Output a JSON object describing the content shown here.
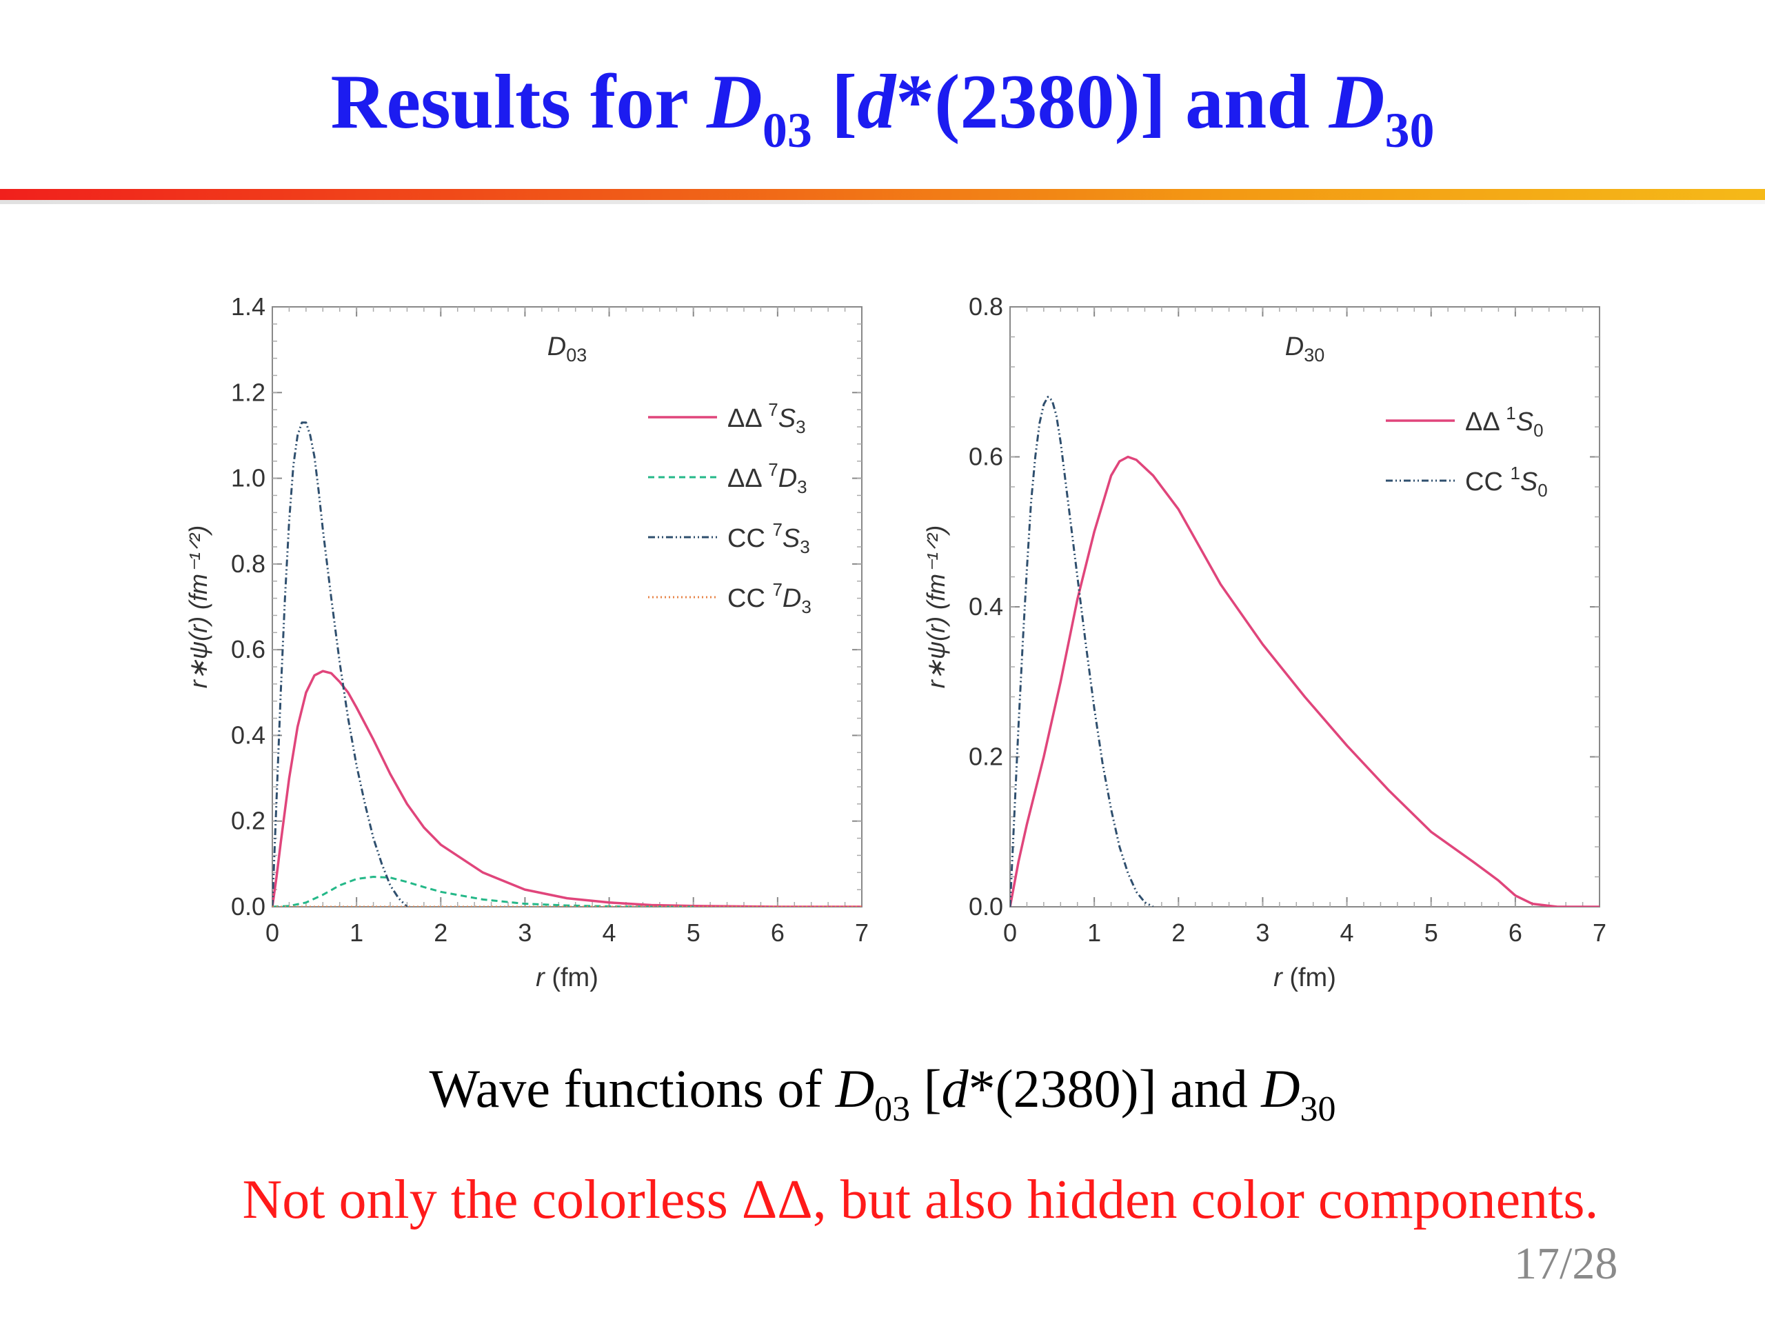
{
  "slide": {
    "title_prefix": "Results for ",
    "title_D03_letter": "D",
    "title_D03_sub": "03",
    "title_bracket_open": " [",
    "title_dstar": "d",
    "title_dstar_rest": "*(2380)] and ",
    "title_D30_letter": "D",
    "title_D30_sub": "30",
    "caption_prefix": "Wave functions of ",
    "caption_D03_letter": "D",
    "caption_D03_sub": "03",
    "caption_middle_open": " [",
    "caption_dstar": "d",
    "caption_middle_rest": "*(2380)] and ",
    "caption_D30_letter": "D",
    "caption_D30_sub": "30",
    "note": "Not only the colorless ΔΔ, but also hidden color components.",
    "page_number": "17/28",
    "colors": {
      "title": "#1c1cf0",
      "note": "#ff1a1a",
      "page_number": "#8a8a8a"
    }
  },
  "chart_data": [
    {
      "type": "line",
      "panel_label": "D",
      "panel_label_sub": "03",
      "xlabel_var": "r",
      "xlabel_unit": " (fm)",
      "ylabel": "r∗ψ(r) (fm⁻¹ᐟ²)",
      "xlim": [
        0,
        7
      ],
      "ylim": [
        0,
        1.4
      ],
      "x_ticks": [
        "0",
        "1",
        "2",
        "3",
        "4",
        "5",
        "6",
        "7"
      ],
      "y_ticks": [
        "0.0",
        "0.2",
        "0.4",
        "0.6",
        "0.8",
        "1.0",
        "1.2",
        "1.4"
      ],
      "legend_position": "top-right",
      "series": [
        {
          "name": "ΔΔ ⁷S₃",
          "legend_main": "ΔΔ ",
          "legend_sup": "7",
          "legend_state": "S",
          "legend_sub": "3",
          "color": "#e0457b",
          "dash": "solid",
          "x": [
            0,
            0.05,
            0.1,
            0.2,
            0.3,
            0.4,
            0.5,
            0.6,
            0.7,
            0.8,
            0.9,
            1.0,
            1.2,
            1.4,
            1.6,
            1.8,
            2.0,
            2.5,
            3.0,
            3.5,
            4.0,
            4.5,
            5.0,
            5.5,
            6.0,
            6.5,
            7.0
          ],
          "y": [
            0,
            0.07,
            0.15,
            0.3,
            0.42,
            0.5,
            0.54,
            0.55,
            0.545,
            0.525,
            0.5,
            0.465,
            0.39,
            0.31,
            0.24,
            0.185,
            0.145,
            0.08,
            0.04,
            0.02,
            0.01,
            0.004,
            0.002,
            0.001,
            0,
            0,
            0
          ]
        },
        {
          "name": "ΔΔ ⁷D₃",
          "legend_main": "ΔΔ ",
          "legend_sup": "7",
          "legend_state": "D",
          "legend_sub": "3",
          "color": "#24b888",
          "dash": "dashed",
          "x": [
            0,
            0.2,
            0.4,
            0.6,
            0.8,
            1.0,
            1.2,
            1.4,
            1.6,
            1.8,
            2.0,
            2.5,
            3.0,
            3.5,
            4.0,
            4.5,
            5.0
          ],
          "y": [
            0,
            0.002,
            0.01,
            0.028,
            0.05,
            0.065,
            0.07,
            0.068,
            0.058,
            0.046,
            0.035,
            0.017,
            0.007,
            0.003,
            0.001,
            0,
            0
          ]
        },
        {
          "name": "CC ⁷S₃",
          "legend_main": "CC ",
          "legend_sup": "7",
          "legend_state": "S",
          "legend_sub": "3",
          "color": "#2f4f6e",
          "dash": "dashdotdot",
          "x": [
            0,
            0.05,
            0.1,
            0.15,
            0.2,
            0.25,
            0.3,
            0.35,
            0.4,
            0.45,
            0.5,
            0.55,
            0.6,
            0.7,
            0.8,
            0.9,
            1.0,
            1.1,
            1.2,
            1.3,
            1.4,
            1.5,
            1.6
          ],
          "y": [
            0,
            0.25,
            0.5,
            0.72,
            0.9,
            1.03,
            1.1,
            1.13,
            1.13,
            1.1,
            1.05,
            0.97,
            0.88,
            0.72,
            0.57,
            0.44,
            0.33,
            0.24,
            0.16,
            0.1,
            0.05,
            0.02,
            0
          ]
        },
        {
          "name": "CC ⁷D₃",
          "legend_main": "CC ",
          "legend_sup": "7",
          "legend_state": "D",
          "legend_sub": "3",
          "color": "#e8864a",
          "dash": "dotted",
          "x": [
            0,
            1,
            2,
            3,
            4,
            5,
            6,
            7
          ],
          "y": [
            0,
            0,
            0,
            0,
            0,
            0,
            0,
            0
          ]
        }
      ]
    },
    {
      "type": "line",
      "panel_label": "D",
      "panel_label_sub": "30",
      "xlabel_var": "r",
      "xlabel_unit": " (fm)",
      "ylabel": "r∗ψ(r) (fm⁻¹ᐟ²)",
      "xlim": [
        0,
        7
      ],
      "ylim": [
        0,
        0.8
      ],
      "x_ticks": [
        "0",
        "1",
        "2",
        "3",
        "4",
        "5",
        "6",
        "7"
      ],
      "y_ticks": [
        "0.0",
        "0.2",
        "0.4",
        "0.6",
        "0.8"
      ],
      "legend_position": "top-right",
      "series": [
        {
          "name": "ΔΔ ¹S₀",
          "legend_main": "ΔΔ ",
          "legend_sup": "1",
          "legend_state": "S",
          "legend_sub": "0",
          "color": "#e0457b",
          "dash": "solid",
          "x": [
            0,
            0.1,
            0.2,
            0.4,
            0.6,
            0.8,
            1.0,
            1.2,
            1.3,
            1.4,
            1.5,
            1.7,
            2.0,
            2.5,
            3.0,
            3.5,
            4.0,
            4.5,
            5.0,
            5.5,
            5.8,
            6.0,
            6.2,
            6.5,
            7.0
          ],
          "y": [
            0,
            0.06,
            0.11,
            0.2,
            0.3,
            0.41,
            0.5,
            0.575,
            0.594,
            0.6,
            0.596,
            0.575,
            0.53,
            0.43,
            0.35,
            0.28,
            0.215,
            0.155,
            0.1,
            0.06,
            0.035,
            0.015,
            0.004,
            0,
            0
          ]
        },
        {
          "name": "CC ¹S₀",
          "legend_main": "CC ",
          "legend_sup": "1",
          "legend_state": "S",
          "legend_sub": "0",
          "color": "#2f4f6e",
          "dash": "dashdotdot",
          "x": [
            0,
            0.05,
            0.1,
            0.15,
            0.2,
            0.25,
            0.3,
            0.35,
            0.4,
            0.45,
            0.5,
            0.55,
            0.6,
            0.7,
            0.8,
            0.9,
            1.0,
            1.1,
            1.2,
            1.3,
            1.4,
            1.5,
            1.6,
            1.7
          ],
          "y": [
            0,
            0.12,
            0.24,
            0.35,
            0.45,
            0.54,
            0.6,
            0.645,
            0.67,
            0.68,
            0.675,
            0.655,
            0.62,
            0.53,
            0.44,
            0.35,
            0.265,
            0.19,
            0.13,
            0.08,
            0.045,
            0.02,
            0.006,
            0
          ]
        }
      ]
    }
  ]
}
